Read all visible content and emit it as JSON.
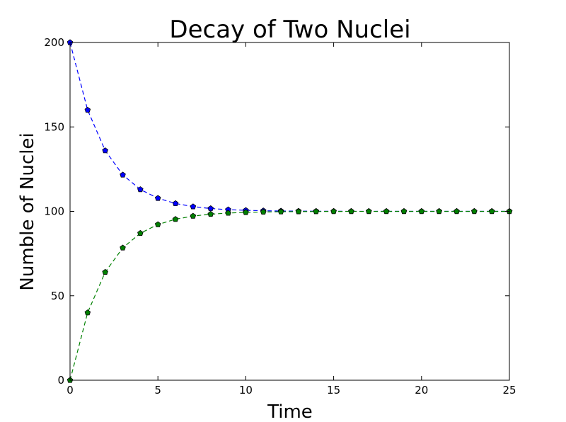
{
  "chart_data": {
    "type": "line",
    "title": "Decay of Two Nuclei",
    "xlabel": "Time",
    "ylabel": "Numble of Nuclei",
    "xlim": [
      0,
      25
    ],
    "ylim": [
      0,
      200
    ],
    "x_ticks": [
      "0",
      "5",
      "10",
      "15",
      "20",
      "25"
    ],
    "y_ticks": [
      "0",
      "50",
      "100",
      "150",
      "200"
    ],
    "grid": false,
    "legend": "none",
    "x": [
      0,
      1,
      2,
      3,
      4,
      5,
      6,
      7,
      8,
      9,
      10,
      11,
      12,
      13,
      14,
      15,
      16,
      17,
      18,
      19,
      20,
      21,
      22,
      23,
      24,
      25
    ],
    "series": [
      {
        "color": "#0000ff",
        "marker_color": "#0000ff",
        "line_style": "dashed",
        "marker": "pentagon",
        "values": [
          200,
          160,
          136,
          121.6,
          112.96,
          107.78,
          104.67,
          102.8,
          101.68,
          101.01,
          100.6,
          100.36,
          100.22,
          100.13,
          100.08,
          100.05,
          100.03,
          100.02,
          100.01,
          100.01,
          100.0,
          100.0,
          100.0,
          100.0,
          100.0,
          100.0
        ]
      },
      {
        "color": "#008000",
        "marker_color": "#008000",
        "line_style": "dashed",
        "marker": "pentagon",
        "values": [
          0,
          40,
          64,
          78.4,
          87.04,
          92.22,
          95.33,
          97.2,
          98.32,
          98.99,
          99.4,
          99.64,
          99.78,
          99.87,
          99.92,
          99.95,
          99.97,
          99.98,
          99.99,
          99.99,
          100.0,
          100.0,
          100.0,
          100.0,
          100.0,
          100.0
        ]
      }
    ]
  }
}
